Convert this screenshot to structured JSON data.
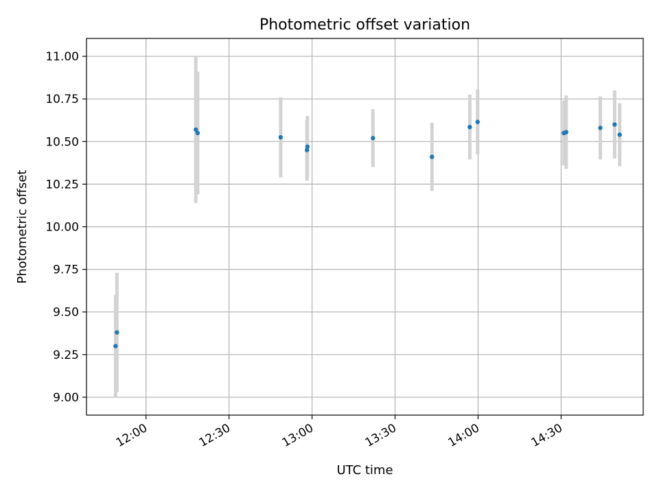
{
  "chart_data": {
    "type": "scatter",
    "title": "Photometric offset variation",
    "xlabel": "UTC time",
    "ylabel": "Photometric offset",
    "x_ticks": [
      "12:00",
      "12:30",
      "13:00",
      "13:30",
      "14:00",
      "14:30"
    ],
    "y_ticks": [
      "9.00",
      "9.25",
      "9.50",
      "9.75",
      "10.00",
      "10.25",
      "10.50",
      "10.75",
      "11.00"
    ],
    "xlim": [
      "11:38:30",
      "14:59:40"
    ],
    "ylim": [
      8.895,
      11.105
    ],
    "grid": true,
    "colors": {
      "point": "#1f77b4",
      "errorbar": "#d3d3d3",
      "grid": "#b0b0b0"
    },
    "points": [
      {
        "t": "11:49:00",
        "y": 9.3,
        "err": 0.3
      },
      {
        "t": "11:49:30",
        "y": 9.38,
        "err": 0.35
      },
      {
        "t": "12:18:00",
        "y": 10.57,
        "err": 0.43
      },
      {
        "t": "12:18:40",
        "y": 10.55,
        "err": 0.36
      },
      {
        "t": "12:48:40",
        "y": 10.525,
        "err": 0.235
      },
      {
        "t": "12:58:10",
        "y": 10.45,
        "err": 0.18
      },
      {
        "t": "12:58:20",
        "y": 10.47,
        "err": 0.18
      },
      {
        "t": "13:22:00",
        "y": 10.52,
        "err": 0.17
      },
      {
        "t": "13:43:20",
        "y": 10.41,
        "err": 0.2
      },
      {
        "t": "13:57:00",
        "y": 10.585,
        "err": 0.19
      },
      {
        "t": "13:59:50",
        "y": 10.615,
        "err": 0.19
      },
      {
        "t": "14:31:00",
        "y": 10.55,
        "err": 0.19
      },
      {
        "t": "14:31:50",
        "y": 10.555,
        "err": 0.215
      },
      {
        "t": "14:44:10",
        "y": 10.58,
        "err": 0.185
      },
      {
        "t": "14:49:20",
        "y": 10.6,
        "err": 0.2
      },
      {
        "t": "14:51:10",
        "y": 10.54,
        "err": 0.185
      }
    ]
  }
}
